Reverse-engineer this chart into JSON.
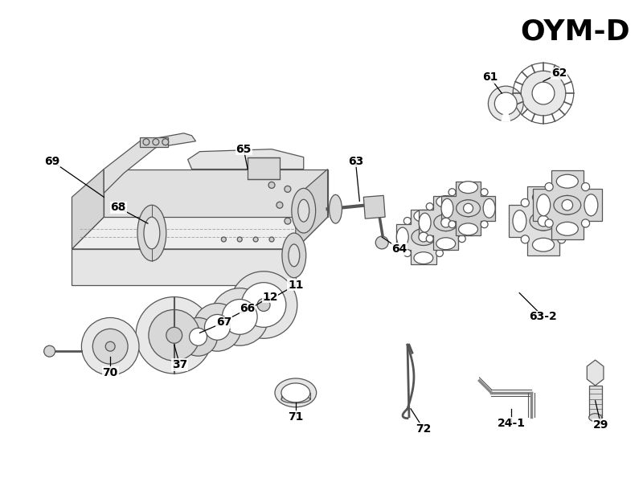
{
  "title": "OYM-D",
  "bg_color": "#ffffff",
  "line_color": "#555555",
  "label_color": "#000000",
  "label_fontsize": 10,
  "title_fontsize": 26
}
